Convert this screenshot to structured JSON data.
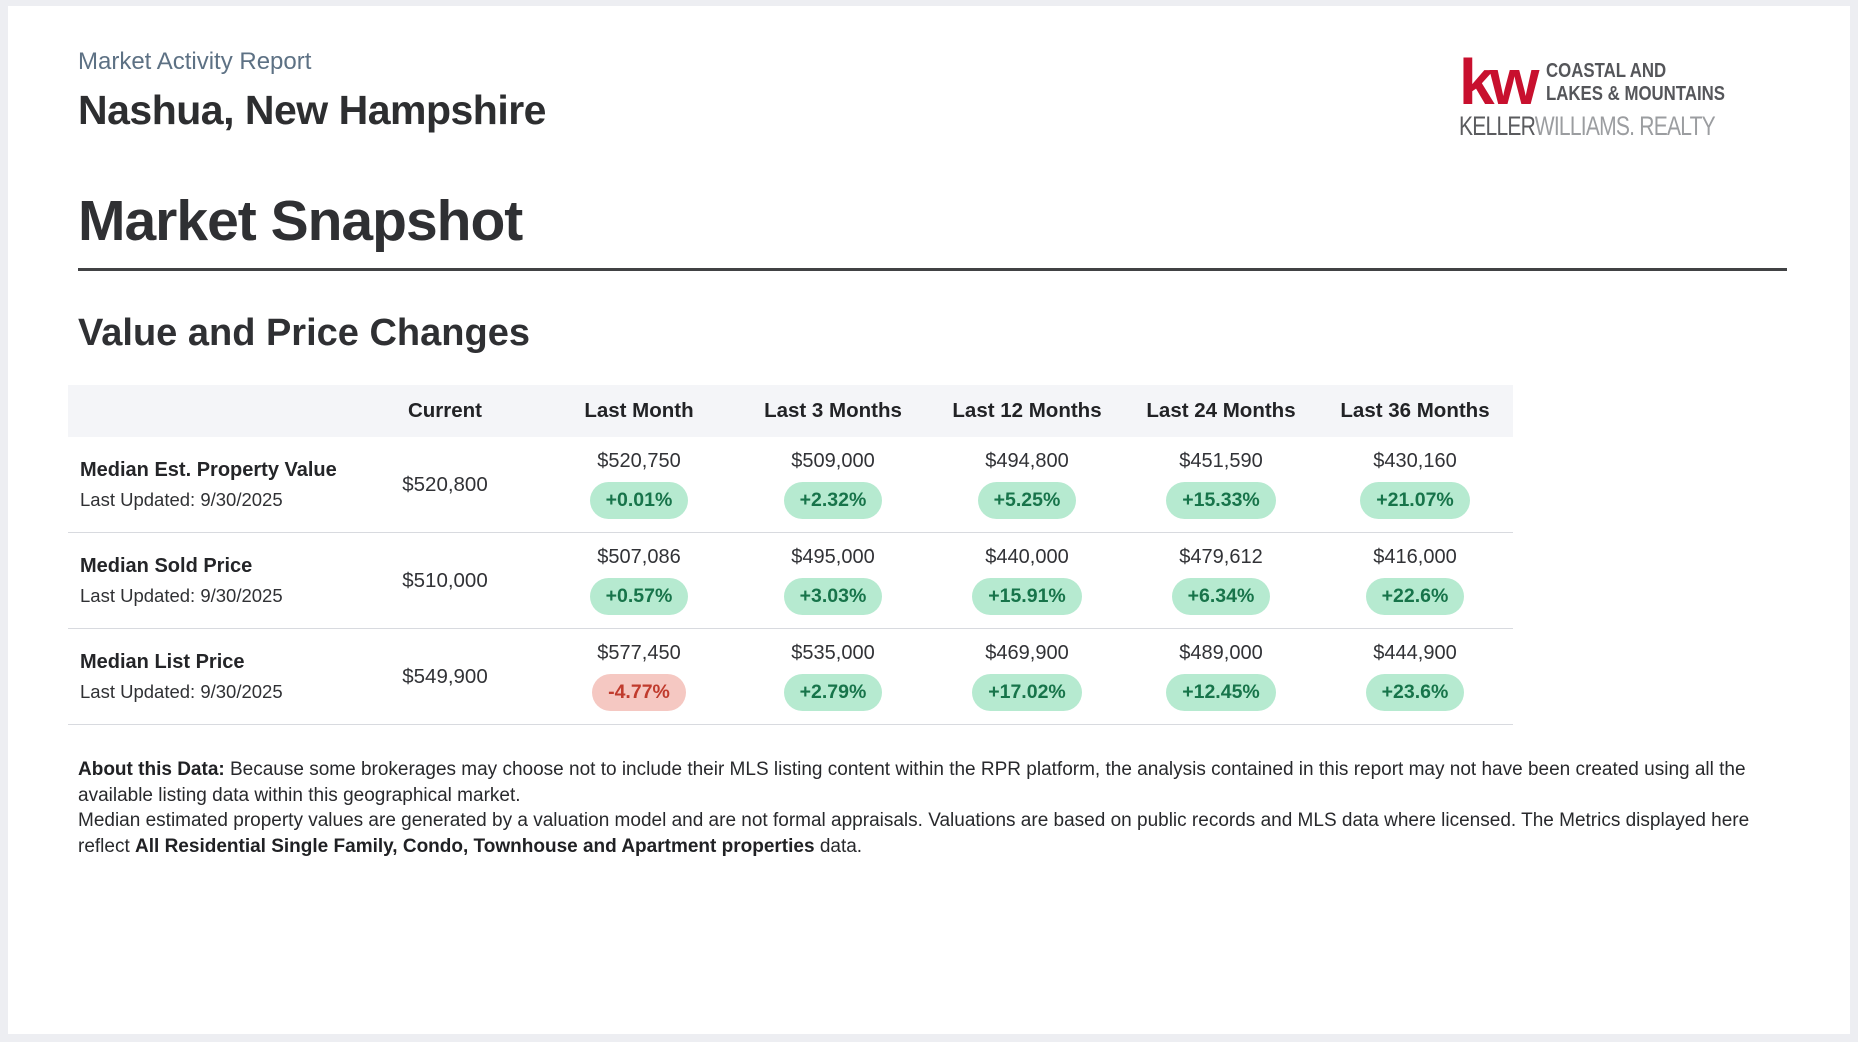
{
  "page": {
    "report_type": "Market Activity Report",
    "location": "Nashua, New Hampshire"
  },
  "logo": {
    "monogram": "kw",
    "office_line1": "COASTAL AND",
    "office_line2": "LAKES & MOUNTAINS",
    "brand_primary": "KELLER",
    "brand_secondary": "WILLIAMS",
    "brand_tertiary": ". REALTY",
    "brand_color": "#c8102e"
  },
  "snapshot": {
    "title": "Market Snapshot",
    "section_title": "Value and Price Changes"
  },
  "table": {
    "columns": [
      "Current",
      "Last Month",
      "Last 3 Months",
      "Last 12 Months",
      "Last 24 Months",
      "Last 36 Months"
    ],
    "rows": [
      {
        "label": "Median Est. Property Value",
        "updated": "Last Updated: 9/30/2025",
        "current": "$520,800",
        "cells": [
          {
            "value": "$520,750",
            "change": "+0.01%",
            "direction": "up"
          },
          {
            "value": "$509,000",
            "change": "+2.32%",
            "direction": "up"
          },
          {
            "value": "$494,800",
            "change": "+5.25%",
            "direction": "up"
          },
          {
            "value": "$451,590",
            "change": "+15.33%",
            "direction": "up"
          },
          {
            "value": "$430,160",
            "change": "+21.07%",
            "direction": "up"
          }
        ]
      },
      {
        "label": "Median Sold Price",
        "updated": "Last Updated: 9/30/2025",
        "current": "$510,000",
        "cells": [
          {
            "value": "$507,086",
            "change": "+0.57%",
            "direction": "up"
          },
          {
            "value": "$495,000",
            "change": "+3.03%",
            "direction": "up"
          },
          {
            "value": "$440,000",
            "change": "+15.91%",
            "direction": "up"
          },
          {
            "value": "$479,612",
            "change": "+6.34%",
            "direction": "up"
          },
          {
            "value": "$416,000",
            "change": "+22.6%",
            "direction": "up"
          }
        ]
      },
      {
        "label": "Median List Price",
        "updated": "Last Updated: 9/30/2025",
        "current": "$549,900",
        "cells": [
          {
            "value": "$577,450",
            "change": "-4.77%",
            "direction": "down"
          },
          {
            "value": "$535,000",
            "change": "+2.79%",
            "direction": "up"
          },
          {
            "value": "$469,900",
            "change": "+17.02%",
            "direction": "up"
          },
          {
            "value": "$489,000",
            "change": "+12.45%",
            "direction": "up"
          },
          {
            "value": "$444,900",
            "change": "+23.6%",
            "direction": "up"
          }
        ]
      }
    ]
  },
  "about": {
    "label": "About this Data:",
    "line1": " Because some brokerages may choose not to include their MLS listing content within the RPR platform, the analysis contained in this report may not have been created using all the",
    "line2": "available listing data within this geographical market.",
    "line3": "Median estimated property values are generated by a valuation model and are not formal appraisals. Valuations are based on public records and MLS data where licensed. The Metrics displayed here",
    "line4_prefix": "reflect ",
    "line4_bold": "All Residential Single Family, Condo, Townhouse and Apartment properties",
    "line4_suffix": " data."
  },
  "colors": {
    "positive_badge_bg": "#b6ead0",
    "positive_badge_text": "#17744a",
    "negative_badge_bg": "#f5c8c2",
    "negative_badge_text": "#c03b2d",
    "kw_red": "#c8102e",
    "report_type_text": "#5d7184"
  }
}
